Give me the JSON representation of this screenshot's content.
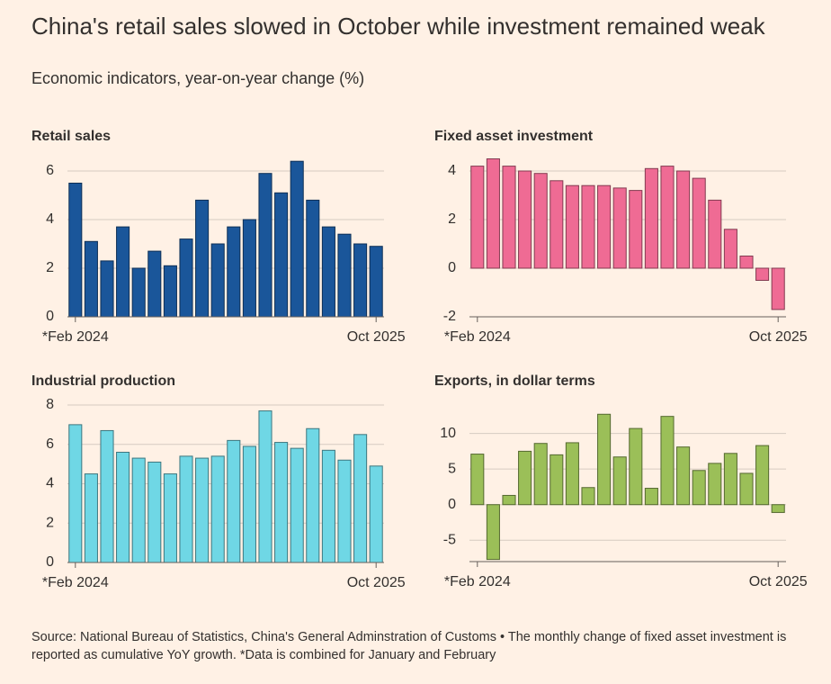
{
  "title": "China's retail sales slowed in October while investment remained weak",
  "subtitle": "Economic indicators, year-on-year change (%)",
  "footnote": "Source: National Bureau of Statistics, China's General Adminstration of Customs • The monthly change of fixed asset investment is reported as cumulative YoY growth. *Data is combined for January and February",
  "chart_data": [
    {
      "type": "bar",
      "title": "Retail sales",
      "color": "#1a569a",
      "categories": [
        "*Feb 2024",
        null,
        null,
        null,
        null,
        null,
        null,
        null,
        null,
        null,
        null,
        null,
        null,
        null,
        null,
        null,
        null,
        null,
        null,
        "Oct 2025"
      ],
      "values": [
        5.5,
        3.1,
        2.3,
        3.7,
        2.0,
        2.7,
        2.1,
        3.2,
        4.8,
        3.0,
        3.7,
        4.0,
        5.9,
        5.1,
        6.4,
        4.8,
        3.7,
        3.4,
        3.0,
        2.9
      ],
      "ylim": [
        0,
        6.5
      ],
      "yticks": [
        0,
        2,
        4,
        6
      ],
      "grid": true
    },
    {
      "type": "bar",
      "title": "Fixed asset investment",
      "color": "#ef6b94",
      "categories": [
        "*Feb 2024",
        null,
        null,
        null,
        null,
        null,
        null,
        null,
        null,
        null,
        null,
        null,
        null,
        null,
        null,
        null,
        null,
        null,
        null,
        "Oct 2025"
      ],
      "values": [
        4.2,
        4.5,
        4.2,
        4.0,
        3.9,
        3.6,
        3.4,
        3.4,
        3.4,
        3.3,
        3.2,
        4.1,
        4.2,
        4.0,
        3.7,
        2.8,
        1.6,
        0.5,
        -0.5,
        -1.7
      ],
      "ylim": [
        -2,
        4.5
      ],
      "yticks": [
        -2,
        0,
        2,
        4
      ],
      "grid": true
    },
    {
      "type": "bar",
      "title": "Industrial production",
      "color": "#6fd7e5",
      "categories": [
        "*Feb 2024",
        null,
        null,
        null,
        null,
        null,
        null,
        null,
        null,
        null,
        null,
        null,
        null,
        null,
        null,
        null,
        null,
        null,
        null,
        "Oct 2025"
      ],
      "values": [
        7.0,
        4.5,
        6.7,
        5.6,
        5.3,
        5.1,
        4.5,
        5.4,
        5.3,
        5.4,
        6.2,
        5.9,
        7.7,
        6.1,
        5.8,
        6.8,
        5.7,
        5.2,
        6.5,
        4.9
      ],
      "ylim": [
        0,
        8
      ],
      "yticks": [
        0,
        2,
        4,
        6,
        8
      ],
      "grid": true
    },
    {
      "type": "bar",
      "title": "Exports, in dollar terms",
      "color": "#9bbf58",
      "categories": [
        "*Feb 2024",
        null,
        null,
        null,
        null,
        null,
        null,
        null,
        null,
        null,
        null,
        null,
        null,
        null,
        null,
        null,
        null,
        null,
        null,
        "Oct 2025"
      ],
      "values": [
        7.1,
        -7.7,
        1.3,
        7.5,
        8.6,
        7.0,
        8.7,
        2.4,
        12.7,
        6.7,
        10.7,
        2.3,
        12.4,
        8.1,
        4.8,
        5.8,
        7.2,
        4.4,
        8.3,
        -1.1
      ],
      "ylim": [
        -8,
        14
      ],
      "yticks": [
        -5,
        0,
        5,
        10
      ],
      "grid": true
    }
  ]
}
